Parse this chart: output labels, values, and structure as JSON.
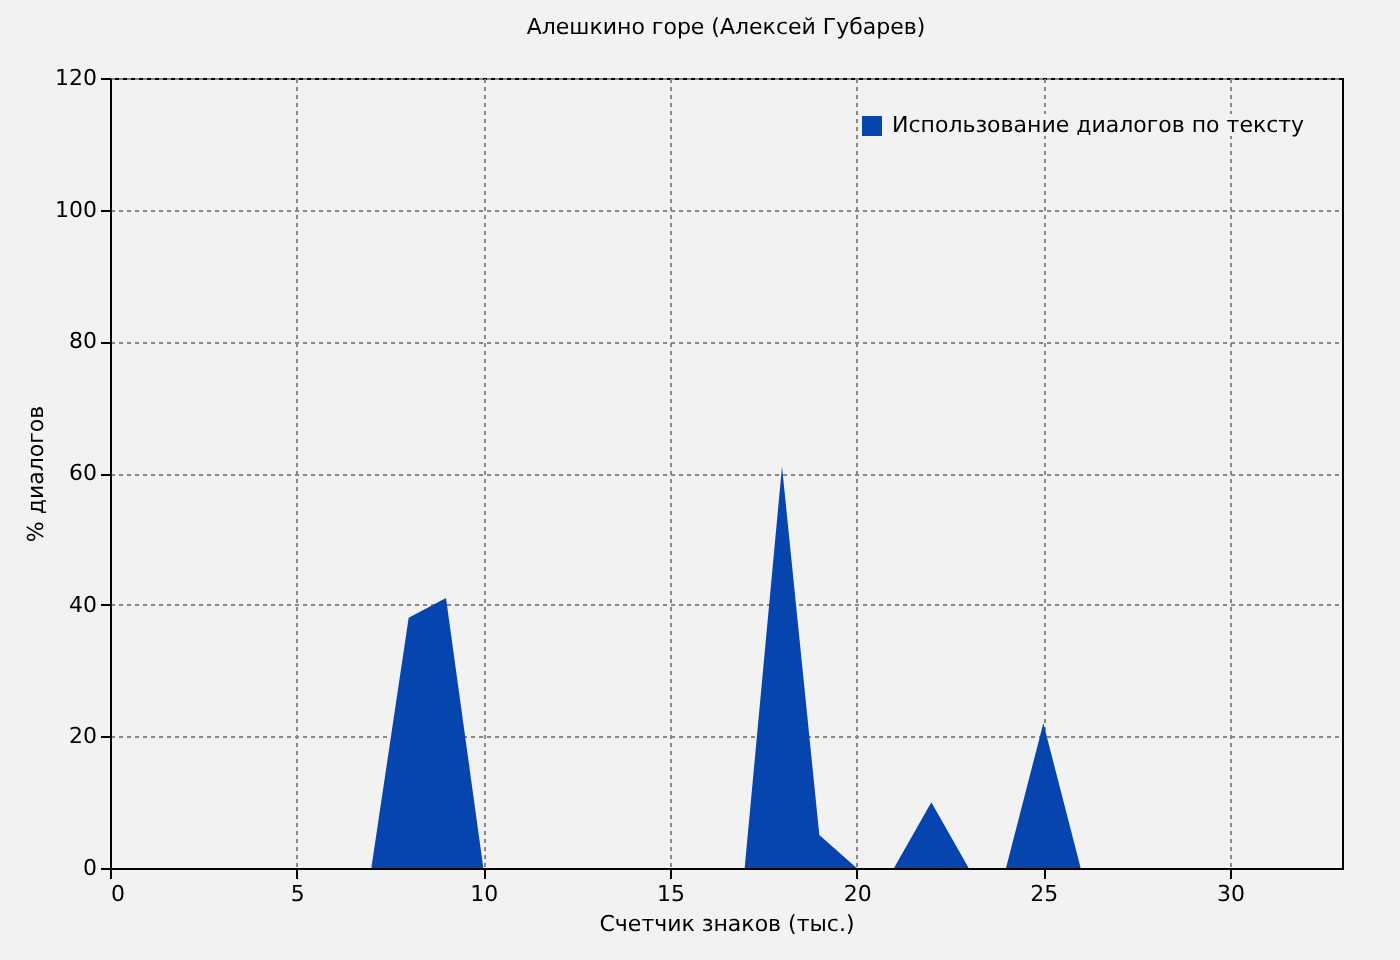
{
  "chart_data": {
    "type": "area",
    "title": "Алешкино горе (Алексей Губарев)",
    "xlabel": "Счетчик знаков (тыс.)",
    "ylabel": "% диалогов",
    "x": [
      0,
      1,
      2,
      3,
      4,
      5,
      6,
      7,
      8,
      9,
      10,
      11,
      12,
      13,
      14,
      15,
      16,
      17,
      18,
      19,
      20,
      21,
      22,
      23,
      24,
      25,
      26,
      27,
      28,
      29,
      30,
      31,
      32,
      33
    ],
    "series": [
      {
        "name": "Использование диалогов по тексту",
        "color": "#0645ad",
        "values": [
          0,
          0,
          0,
          0,
          0,
          0,
          0,
          0,
          38,
          41,
          0,
          0,
          0,
          0,
          0,
          0,
          0,
          0,
          61,
          5,
          0,
          0,
          10,
          0,
          0,
          22,
          0,
          0,
          0,
          0,
          0,
          0,
          0,
          0
        ]
      }
    ],
    "xlim": [
      0,
      33
    ],
    "xticks": [
      0,
      5,
      10,
      15,
      20,
      25,
      30
    ],
    "ylim": [
      0,
      120
    ],
    "yticks": [
      0,
      20,
      40,
      60,
      80,
      100,
      120
    ],
    "grid": true,
    "legend": "top right"
  }
}
